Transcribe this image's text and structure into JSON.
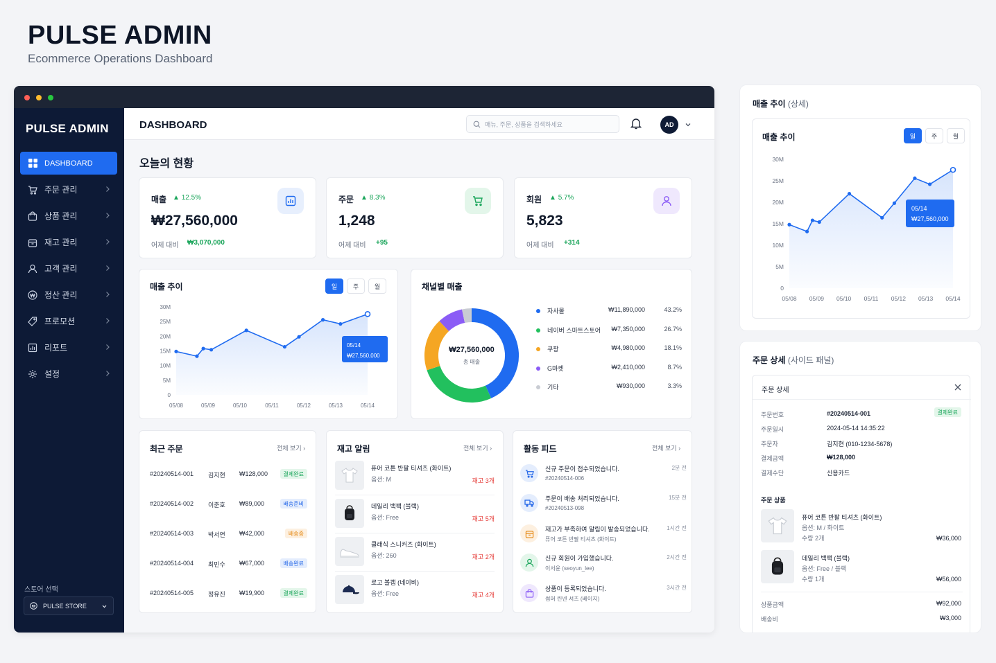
{
  "header": {
    "title": "PULSE ADMIN",
    "subtitle": "Ecommerce Operations Dashboard"
  },
  "colors": {
    "accent": "#1f6bf0",
    "sidebar": "#0d1a36",
    "positive": "#1aa55a",
    "alert": "#e53935"
  },
  "sidebar": {
    "brand": "PULSE ADMIN",
    "items": [
      {
        "label": "DASHBOARD",
        "icon": "grid-icon",
        "active": true
      },
      {
        "label": "주문 관리",
        "icon": "cart-icon"
      },
      {
        "label": "상품 관리",
        "icon": "bag-icon"
      },
      {
        "label": "재고 관리",
        "icon": "box-icon"
      },
      {
        "label": "고객 관리",
        "icon": "user-icon"
      },
      {
        "label": "정산 관리",
        "icon": "won-icon"
      },
      {
        "label": "프로모션",
        "icon": "tag-icon"
      },
      {
        "label": "리포트",
        "icon": "report-icon"
      },
      {
        "label": "설정",
        "icon": "gear-icon"
      }
    ],
    "store_label": "스토어 선택",
    "store_value": "PULSE STORE"
  },
  "topbar": {
    "title": "DASHBOARD",
    "search_placeholder": "매뉴, 주문, 상품을 검색하세요",
    "avatar": "AD"
  },
  "today": {
    "title": "오늘의 현황"
  },
  "kpis": [
    {
      "label": "매출",
      "change": "12.5%",
      "value": "₩27,560,000",
      "compare_label": "어제 대비",
      "compare_value": "₩3,070,000"
    },
    {
      "label": "주문",
      "change": "8.3%",
      "value": "1,248",
      "compare_label": "어제 대비",
      "compare_value": "+95"
    },
    {
      "label": "회원",
      "change": "5.7%",
      "value": "5,823",
      "compare_label": "어제 대비",
      "compare_value": "+314"
    }
  ],
  "sales_trend": {
    "title": "매출 추이",
    "periods": [
      "일",
      "주",
      "월"
    ],
    "tooltip_date": "05/14",
    "tooltip_value": "₩27,560,000"
  },
  "chart_data": [
    {
      "type": "line",
      "title": "매출 추이",
      "x": [
        "05/08",
        "05/09",
        "05/10",
        "05/11",
        "05/12",
        "05/13",
        "05/14"
      ],
      "y_ticks": [
        "30M",
        "25M",
        "20M",
        "15M",
        "10M",
        "5M",
        "0"
      ],
      "ylim": [
        0,
        30000000
      ],
      "points": [
        {
          "x": 0,
          "y": 14800000
        },
        {
          "x": 0.65,
          "y": 13200000
        },
        {
          "x": 0.85,
          "y": 15800000
        },
        {
          "x": 1.1,
          "y": 15400000
        },
        {
          "x": 2.2,
          "y": 22000000
        },
        {
          "x": 3.4,
          "y": 16400000
        },
        {
          "x": 3.85,
          "y": 19800000
        },
        {
          "x": 4.6,
          "y": 25600000
        },
        {
          "x": 5.15,
          "y": 24200000
        },
        {
          "x": 6,
          "y": 27560000
        }
      ],
      "series_color": "#1f6bf0",
      "grid": false
    },
    {
      "type": "pie",
      "title": "채널별 매출",
      "center_value": "₩27,560,000",
      "center_label": "총 매출",
      "slices": [
        {
          "name": "자사몰",
          "value": "₩11,890,000",
          "percent": 43.2,
          "percent_label": "43.2%",
          "color": "#1f6bf0"
        },
        {
          "name": "네이버 스마트스토어",
          "value": "₩7,350,000",
          "percent": 26.7,
          "percent_label": "26.7%",
          "color": "#22c05e"
        },
        {
          "name": "쿠팡",
          "value": "₩4,980,000",
          "percent": 18.1,
          "percent_label": "18.1%",
          "color": "#f5a623"
        },
        {
          "name": "G마켓",
          "value": "₩2,410,000",
          "percent": 8.7,
          "percent_label": "8.7%",
          "color": "#8b5cf6"
        },
        {
          "name": "기타",
          "value": "₩930,000",
          "percent": 3.3,
          "percent_label": "3.3%",
          "color": "#c9ccd3"
        }
      ]
    }
  ],
  "recent_orders": {
    "title": "최근 주문",
    "more": "전체 보기 ›",
    "rows": [
      {
        "id": "#20240514-001",
        "name": "김지현",
        "amount": "₩128,000",
        "status": "결제완료",
        "tone": "green"
      },
      {
        "id": "#20240514-002",
        "name": "이준호",
        "amount": "₩89,000",
        "status": "배송준비",
        "tone": "blue"
      },
      {
        "id": "#20240514-003",
        "name": "박서연",
        "amount": "₩42,000",
        "status": "배송중",
        "tone": "orange"
      },
      {
        "id": "#20240514-004",
        "name": "최민수",
        "amount": "₩67,000",
        "status": "배송완료",
        "tone": "blue"
      },
      {
        "id": "#20240514-005",
        "name": "정유진",
        "amount": "₩19,900",
        "status": "결제완료",
        "tone": "green"
      }
    ]
  },
  "stock_alerts": {
    "title": "재고 알림",
    "more": "전체 보기 ›",
    "items": [
      {
        "name": "퓨어 코튼 반팔 티셔츠 (화이트)",
        "option": "옵션: M",
        "qty": "재고 3개",
        "thumb": "tshirt-icon"
      },
      {
        "name": "데일리 백팩 (블랙)",
        "option": "옵션: Free",
        "qty": "재고 5개",
        "thumb": "backpack-icon"
      },
      {
        "name": "클래식 스니커즈 (화이트)",
        "option": "옵션: 260",
        "qty": "재고 2개",
        "thumb": "sneaker-icon"
      },
      {
        "name": "로고 볼캡 (네이비)",
        "option": "옵션: Free",
        "qty": "재고 4개",
        "thumb": "cap-icon"
      }
    ]
  },
  "activity": {
    "title": "활동 피드",
    "more": "전체 보기 ›",
    "items": [
      {
        "text": "신규 주문이 접수되었습니다.",
        "sub": "#20240514-006",
        "time": "2분 전",
        "icon": "cart-icon",
        "color": "#2467e8",
        "bg": "#e4edfd"
      },
      {
        "text": "주문이 배송 처리되었습니다.",
        "sub": "#20240513-098",
        "time": "15분 전",
        "icon": "truck-icon",
        "color": "#2467e8",
        "bg": "#e4edfd"
      },
      {
        "text": "재고가 부족하여 알림이 발송되었습니다.",
        "sub": "퓨어 코튼 반팔 티셔츠 (화이트)",
        "time": "1시간 전",
        "icon": "box-icon",
        "color": "#e58a17",
        "bg": "#fdf0e0"
      },
      {
        "text": "신규 회원이 가입했습니다.",
        "sub": "이서윤 (seoyun_lee)",
        "time": "2시간 전",
        "icon": "user-icon",
        "color": "#1aa55a",
        "bg": "#e3f6ea"
      },
      {
        "text": "상품이 등록되었습니다.",
        "sub": "썸머 린넨 셔츠 (베이지)",
        "time": "3시간 전",
        "icon": "bag-icon",
        "color": "#8b5cf6",
        "bg": "#efe8fd"
      }
    ]
  },
  "trend_panel": {
    "title": "매출 추이",
    "title_sub": "(상세)",
    "inner_title": "매출 추이",
    "periods": [
      "일",
      "주",
      "월"
    ],
    "tooltip_date": "05/14",
    "tooltip_value": "₩27,560,000"
  },
  "order_panel": {
    "title": "주문 상세",
    "title_sub": "(사이드 패널)",
    "inner_title": "주문 상세",
    "status": "결제완료",
    "fields": [
      {
        "label": "주문번호",
        "value": "#20240514-001"
      },
      {
        "label": "주문일시",
        "value": "2024-05-14 14:35:22"
      },
      {
        "label": "주문자",
        "value": "김지현 (010-1234-5678)"
      },
      {
        "label": "결제금액",
        "value": "₩128,000"
      },
      {
        "label": "결제수단",
        "value": "신용카드"
      }
    ],
    "products_title": "주문 상품",
    "products": [
      {
        "name": "퓨어 코튼 반팔 티셔츠 (화이트)",
        "option": "옵션: M / 화이트",
        "qty": "수량 2개",
        "price": "₩36,000"
      },
      {
        "name": "데일리 백팩 (블랙)",
        "option": "옵션: Free / 블랙",
        "qty": "수량 1개",
        "price": "₩56,000"
      }
    ],
    "totals": [
      {
        "label": "상품금액",
        "value": "₩92,000"
      },
      {
        "label": "배송비",
        "value": "₩3,000"
      }
    ]
  }
}
